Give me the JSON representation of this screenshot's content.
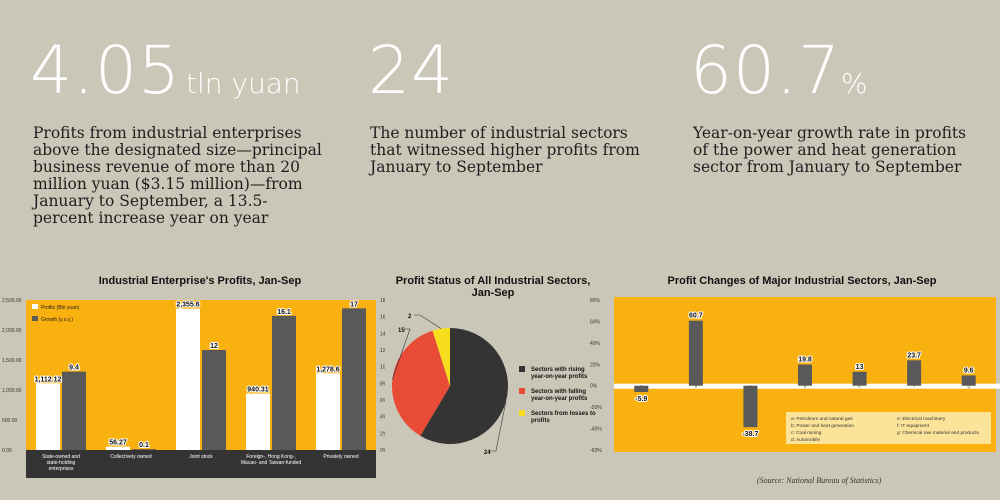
{
  "headline_stats": [
    {
      "value": "4.05",
      "unit": "tln yuan",
      "text": "Profits from industrial enterprises above the designated size—principal business revenue of more than 20 million yuan ($3.15 million)—from January to September, a 13.5-percent increase year on year"
    },
    {
      "value": "24",
      "unit": "",
      "text": "The number of industrial sectors that witnessed higher profits from January to September"
    },
    {
      "value": "60.7",
      "unit": "%",
      "text": "Year-on-year growth rate in profits of the power and heat generation sector from January to September"
    }
  ],
  "colors": {
    "background": "#cbc7b8",
    "panel": "#f9b10f",
    "dark": "#353435",
    "bar_grey": "#5a595a",
    "red": "#e84b36",
    "yellow": "#f6de1e",
    "white": "#ffffff"
  },
  "source": "(Source: National Bureau of Statistics)",
  "chart_data": [
    {
      "type": "bar",
      "title": "Industrial Enterprise's Profits, Jan-Sep",
      "categories": [
        "State-owned and state-holding enterprises",
        "Collectively owned",
        "Joint stock",
        "Foreign-, Hong Kong-, Macao- and Taiwan-funded",
        "Privately owned"
      ],
      "series": [
        {
          "name": "Profits (Bln yuan)",
          "values": [
            1112.12,
            56.27,
            2355.6,
            940.31,
            1278.6
          ],
          "labels": [
            "1,112.12",
            "56.27",
            "2,355.6",
            "940.31",
            "1,278.6"
          ],
          "axis": "left",
          "color": "#ffffff"
        },
        {
          "name": "Growth (y.o.y.)",
          "values": [
            9.4,
            0.1,
            12,
            16.1,
            17
          ],
          "labels": [
            "9.4",
            "0.1",
            "12",
            "16.1",
            "17"
          ],
          "axis": "right",
          "color": "#5a595a"
        }
      ],
      "ylim_left": [
        0,
        2500
      ],
      "yticks_left": [
        "0.00",
        "500.00",
        "1,000.00",
        "1,500.00",
        "2,000.00",
        "2,500.00"
      ],
      "ylim_right": [
        0,
        18
      ],
      "yticks_right": [
        "0%",
        "2%",
        "4%",
        "6%",
        "8%",
        "10%",
        "12%",
        "14%",
        "16%",
        "18%"
      ],
      "legend": "top-left"
    },
    {
      "type": "pie",
      "title": "Profit Status of All Industrial Sectors, Jan-Sep",
      "slices": [
        {
          "name": "Sectors with rising year-on-year profits",
          "value": 24,
          "color": "#353435"
        },
        {
          "name": "Sectors with falling year-on-year profits",
          "value": 15,
          "color": "#e84b36"
        },
        {
          "name": "Sectors from losses to profits",
          "value": 2,
          "color": "#f6de1e"
        }
      ],
      "legend": "right"
    },
    {
      "type": "bar",
      "title": "Profit Changes of Major Industrial Sectors, Jan-Sep",
      "categories": [
        "a",
        "b",
        "c",
        "d",
        "e",
        "f",
        "g"
      ],
      "values": [
        -5.9,
        60.7,
        -38.7,
        19.8,
        13,
        23.7,
        9.6
      ],
      "labels": [
        "-5.9",
        "60.7",
        "-38.7",
        "19.8",
        "13",
        "23.7",
        "9.6"
      ],
      "ylim": [
        -60,
        80
      ],
      "yticks": [
        "-60%",
        "-40%",
        "-20%",
        "0%",
        "20%",
        "40%",
        "60%",
        "80%"
      ],
      "key": [
        "a: Petroleum and natural gas",
        "b: Power and heat generation",
        "c: Coal mining",
        "d: Automobile",
        "e: Electrical machinery",
        "f: IT equipment",
        "g: Chemical raw material and products"
      ]
    }
  ]
}
